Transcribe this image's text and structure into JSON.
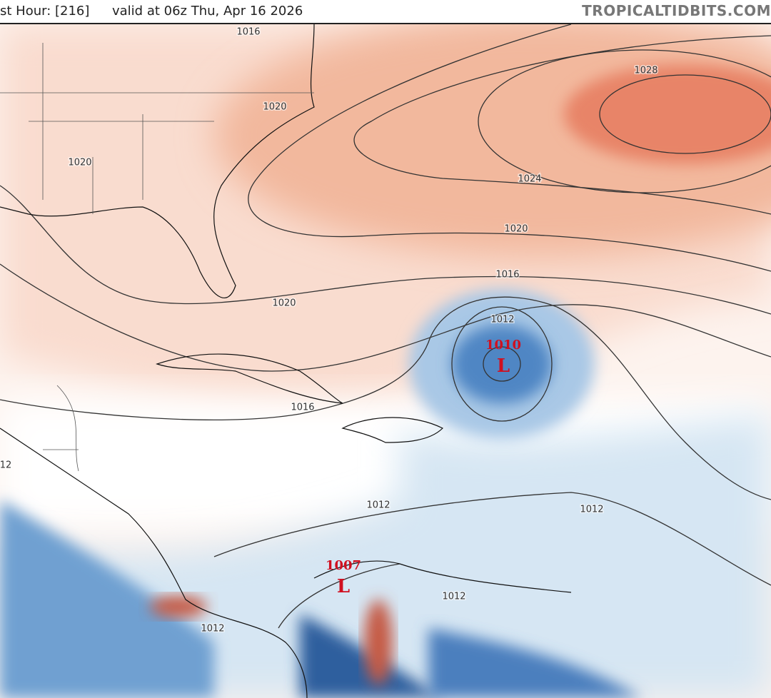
{
  "header": {
    "forecast_hour": "st Hour: [216]",
    "valid": "valid at 06z Thu, Apr 16 2026",
    "site": "TROPICALTIDBITS.COM"
  },
  "isobar_labels": [
    1016,
    1020,
    1020,
    1028,
    1024,
    1020,
    1016,
    1020,
    1012,
    1016,
    1012,
    1012,
    1012,
    1012,
    12
  ],
  "pressure_centers": [
    {
      "value": 1010,
      "symbol": "L"
    },
    {
      "value": 1007,
      "symbol": "L"
    }
  ]
}
